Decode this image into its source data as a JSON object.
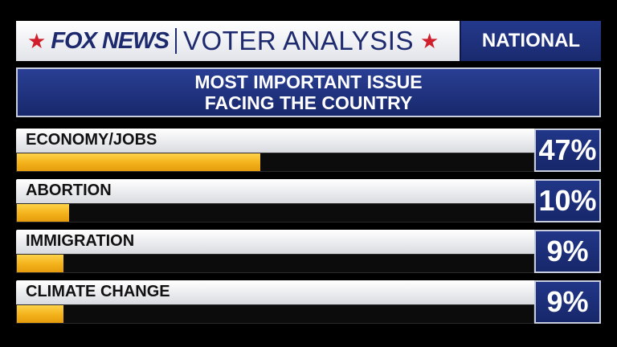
{
  "header": {
    "logo": "FOX NEWS",
    "analysis": "VOTER ANALYSIS",
    "region": "NATIONAL"
  },
  "title": {
    "line1": "MOST IMPORTANT ISSUE",
    "line2": "FACING THE COUNTRY"
  },
  "colors": {
    "navy": "#1d2a6e",
    "bar_fill": "#f3b11a",
    "star": "#d01f2b"
  },
  "chart_data": {
    "type": "bar",
    "title": "MOST IMPORTANT ISSUE FACING THE COUNTRY",
    "categories": [
      "ECONOMY/JOBS",
      "ABORTION",
      "IMMIGRATION",
      "CLIMATE CHANGE"
    ],
    "values": [
      47,
      10,
      9,
      9
    ],
    "value_labels": [
      "47%",
      "10%",
      "9%",
      "9%"
    ],
    "ylim": [
      0,
      100
    ]
  }
}
